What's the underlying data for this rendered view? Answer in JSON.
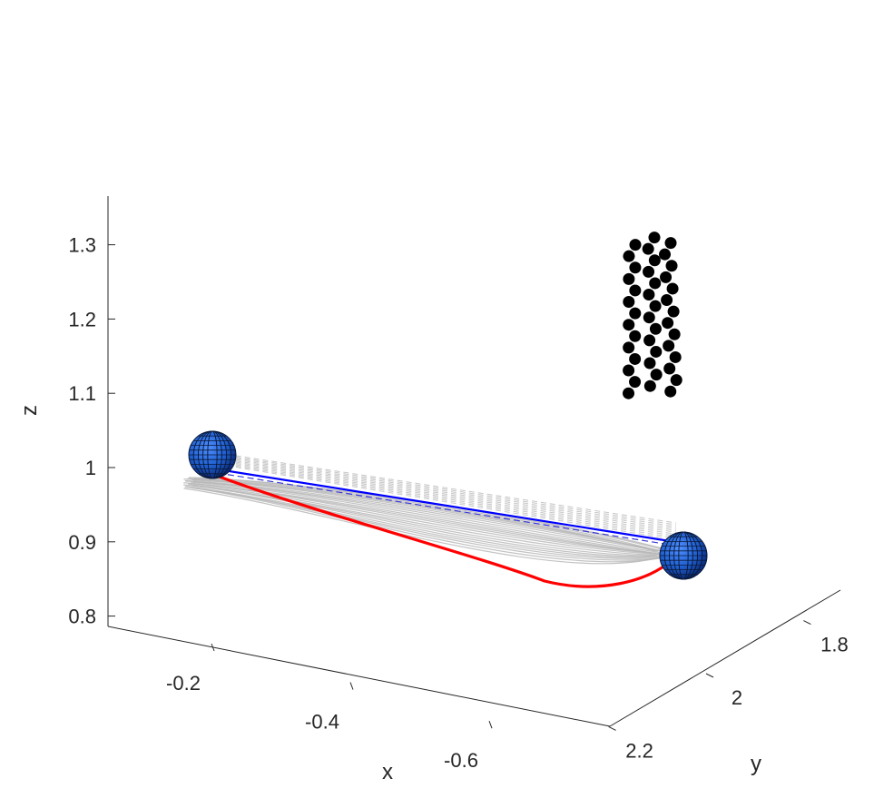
{
  "chart_data": {
    "type": "scatter",
    "projection": "3d",
    "xlabel": "x",
    "ylabel": "y",
    "zlabel": "z",
    "z_ticks": [
      {
        "value": 0.8,
        "label": "0.8"
      },
      {
        "value": 0.9,
        "label": "0.9"
      },
      {
        "value": 1.0,
        "label": "1"
      },
      {
        "value": 1.1,
        "label": "1.1"
      },
      {
        "value": 1.2,
        "label": "1.2"
      },
      {
        "value": 1.3,
        "label": "1.3"
      }
    ],
    "x_ticks": [
      {
        "value": -0.2,
        "label": "-0.2"
      },
      {
        "value": -0.4,
        "label": "-0.4"
      },
      {
        "value": -0.6,
        "label": "-0.6"
      }
    ],
    "y_ticks": [
      {
        "value": 1.8,
        "label": "1.8"
      },
      {
        "value": 2.0,
        "label": "2"
      },
      {
        "value": 2.2,
        "label": "2.2"
      }
    ],
    "zlim": [
      0.78,
      1.36
    ],
    "colors": {
      "axis": "#262626",
      "optimal_path": "#ff0000",
      "reference_path": "#0000ff",
      "samples": "#b8b8b8",
      "sphere": "#1f5fd0",
      "obstacle_points": "#000000"
    },
    "series": [],
    "spheres": [
      {
        "x": -0.15,
        "y": 1.95,
        "z": 1.01
      },
      {
        "x": -0.62,
        "y": 2.05,
        "z": 0.88
      }
    ],
    "obstacle_points": {
      "columns": 3,
      "rows": 14,
      "z_range": [
        1.1,
        1.3
      ]
    },
    "grid": false
  }
}
